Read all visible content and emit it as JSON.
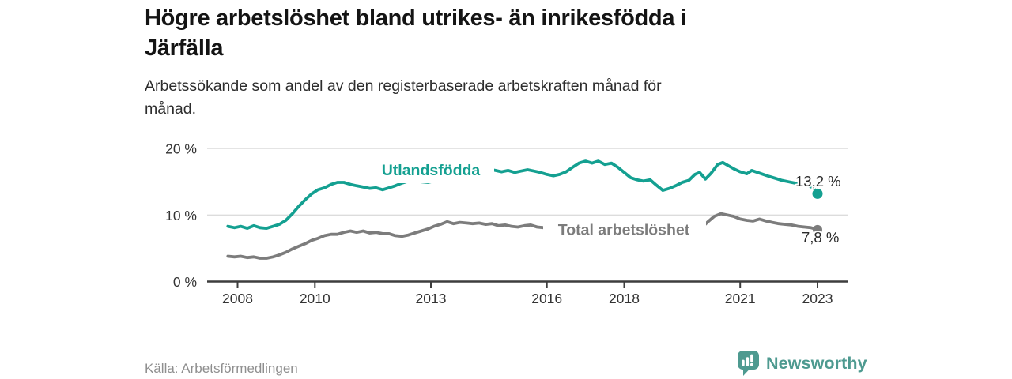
{
  "header": {
    "title_line1": "Högre arbetslöshet bland utrikes- än inrikesfödda i",
    "title_line2": "Järfälla",
    "subtitle_line1": "Arbetssökande som andel av den registerbaserade arbetskraften månad för",
    "subtitle_line2": "månad."
  },
  "footer": {
    "source": "Källa: Arbetsförmedlingen",
    "logo_text": "Newsworthy"
  },
  "chart_data": {
    "type": "line",
    "title": "Högre arbetslöshet bland utrikes- än inrikesfödda i Järfälla",
    "subtitle": "Arbetssökande som andel av den registerbaserade arbetskraften månad för månad.",
    "source": "Källa: Arbetsförmedlingen",
    "unit": "%",
    "grid": "horizontal-only",
    "legend_position": "inline-on-line",
    "xlim": [
      2007.2,
      2023.8
    ],
    "ylim": [
      0,
      21
    ],
    "x_ticks": [
      2008,
      2010,
      2013,
      2016,
      2018,
      2021,
      2023
    ],
    "y_ticks": [
      {
        "value": 0,
        "label": "0 %"
      },
      {
        "value": 10,
        "label": "10 %"
      },
      {
        "value": 20,
        "label": "20 %"
      }
    ],
    "colors": {
      "grid": "#dcdcdc",
      "axis": "#3d3d3d",
      "teal": "#14a091",
      "gray": "#7c7c7c"
    },
    "series": [
      {
        "name": "Utlandsfödda",
        "color": "#14a091",
        "end_label": "13,2 %",
        "end_value": 13.2,
        "points": [
          [
            2007.75,
            8.3
          ],
          [
            2007.92,
            8.1
          ],
          [
            2008.08,
            8.3
          ],
          [
            2008.25,
            8.0
          ],
          [
            2008.42,
            8.4
          ],
          [
            2008.58,
            8.1
          ],
          [
            2008.75,
            8.0
          ],
          [
            2008.92,
            8.3
          ],
          [
            2009.08,
            8.6
          ],
          [
            2009.25,
            9.2
          ],
          [
            2009.42,
            10.2
          ],
          [
            2009.58,
            11.3
          ],
          [
            2009.75,
            12.3
          ],
          [
            2009.92,
            13.2
          ],
          [
            2010.08,
            13.8
          ],
          [
            2010.25,
            14.1
          ],
          [
            2010.42,
            14.6
          ],
          [
            2010.58,
            14.9
          ],
          [
            2010.75,
            14.9
          ],
          [
            2010.92,
            14.6
          ],
          [
            2011.08,
            14.4
          ],
          [
            2011.25,
            14.2
          ],
          [
            2011.42,
            14.0
          ],
          [
            2011.58,
            14.1
          ],
          [
            2011.75,
            13.8
          ],
          [
            2011.92,
            14.1
          ],
          [
            2012.08,
            14.4
          ],
          [
            2012.25,
            14.8
          ],
          [
            2012.42,
            15.1
          ],
          [
            2012.58,
            15.2
          ],
          [
            2012.75,
            15.0
          ],
          [
            2012.92,
            14.9
          ],
          [
            2013.08,
            15.1
          ],
          [
            2013.33,
            15.3
          ],
          [
            2013.58,
            15.6
          ],
          [
            2013.83,
            15.9
          ],
          [
            2014.08,
            16.2
          ],
          [
            2014.33,
            16.5
          ],
          [
            2014.5,
            16.9
          ],
          [
            2014.67,
            16.7
          ],
          [
            2014.83,
            16.5
          ],
          [
            2015.0,
            16.7
          ],
          [
            2015.17,
            16.4
          ],
          [
            2015.33,
            16.6
          ],
          [
            2015.5,
            16.8
          ],
          [
            2015.67,
            16.6
          ],
          [
            2015.83,
            16.4
          ],
          [
            2016.0,
            16.1
          ],
          [
            2016.17,
            15.9
          ],
          [
            2016.33,
            16.1
          ],
          [
            2016.5,
            16.5
          ],
          [
            2016.67,
            17.2
          ],
          [
            2016.83,
            17.8
          ],
          [
            2017.0,
            18.1
          ],
          [
            2017.17,
            17.8
          ],
          [
            2017.33,
            18.1
          ],
          [
            2017.5,
            17.6
          ],
          [
            2017.67,
            17.8
          ],
          [
            2017.83,
            17.2
          ],
          [
            2018.0,
            16.4
          ],
          [
            2018.17,
            15.6
          ],
          [
            2018.33,
            15.3
          ],
          [
            2018.5,
            15.1
          ],
          [
            2018.67,
            15.3
          ],
          [
            2018.83,
            14.5
          ],
          [
            2019.0,
            13.7
          ],
          [
            2019.17,
            14.0
          ],
          [
            2019.33,
            14.4
          ],
          [
            2019.5,
            14.9
          ],
          [
            2019.67,
            15.2
          ],
          [
            2019.83,
            16.1
          ],
          [
            2019.95,
            16.4
          ],
          [
            2020.1,
            15.4
          ],
          [
            2020.25,
            16.3
          ],
          [
            2020.42,
            17.6
          ],
          [
            2020.55,
            17.9
          ],
          [
            2020.7,
            17.4
          ],
          [
            2020.85,
            16.9
          ],
          [
            2021.0,
            16.5
          ],
          [
            2021.17,
            16.2
          ],
          [
            2021.3,
            16.7
          ],
          [
            2021.45,
            16.4
          ],
          [
            2021.6,
            16.1
          ],
          [
            2021.75,
            15.8
          ],
          [
            2021.92,
            15.5
          ],
          [
            2022.08,
            15.2
          ],
          [
            2022.25,
            15.0
          ],
          [
            2022.42,
            14.8
          ],
          [
            2022.58,
            14.6
          ],
          [
            2022.75,
            14.4
          ],
          [
            2022.9,
            14.1
          ],
          [
            2023.0,
            13.2
          ]
        ]
      },
      {
        "name": "Total arbetslöshet",
        "color": "#7c7c7c",
        "end_label": "7,8 %",
        "end_value": 7.8,
        "points": [
          [
            2007.75,
            3.8
          ],
          [
            2007.92,
            3.7
          ],
          [
            2008.08,
            3.8
          ],
          [
            2008.25,
            3.6
          ],
          [
            2008.42,
            3.7
          ],
          [
            2008.58,
            3.5
          ],
          [
            2008.75,
            3.5
          ],
          [
            2008.92,
            3.7
          ],
          [
            2009.08,
            4.0
          ],
          [
            2009.25,
            4.4
          ],
          [
            2009.42,
            4.9
          ],
          [
            2009.58,
            5.3
          ],
          [
            2009.75,
            5.7
          ],
          [
            2009.92,
            6.2
          ],
          [
            2010.08,
            6.5
          ],
          [
            2010.25,
            6.9
          ],
          [
            2010.42,
            7.1
          ],
          [
            2010.58,
            7.1
          ],
          [
            2010.75,
            7.4
          ],
          [
            2010.92,
            7.6
          ],
          [
            2011.08,
            7.4
          ],
          [
            2011.25,
            7.6
          ],
          [
            2011.42,
            7.3
          ],
          [
            2011.58,
            7.4
          ],
          [
            2011.75,
            7.2
          ],
          [
            2011.92,
            7.2
          ],
          [
            2012.08,
            6.9
          ],
          [
            2012.25,
            6.8
          ],
          [
            2012.42,
            7.0
          ],
          [
            2012.58,
            7.3
          ],
          [
            2012.75,
            7.6
          ],
          [
            2012.92,
            7.9
          ],
          [
            2013.08,
            8.3
          ],
          [
            2013.25,
            8.6
          ],
          [
            2013.42,
            9.0
          ],
          [
            2013.58,
            8.7
          ],
          [
            2013.75,
            8.9
          ],
          [
            2013.92,
            8.8
          ],
          [
            2014.08,
            8.7
          ],
          [
            2014.25,
            8.8
          ],
          [
            2014.42,
            8.6
          ],
          [
            2014.58,
            8.7
          ],
          [
            2014.75,
            8.4
          ],
          [
            2014.92,
            8.5
          ],
          [
            2015.08,
            8.3
          ],
          [
            2015.25,
            8.2
          ],
          [
            2015.42,
            8.4
          ],
          [
            2015.58,
            8.5
          ],
          [
            2015.75,
            8.2
          ],
          [
            2015.92,
            8.1
          ],
          [
            2016.17,
            8.0
          ],
          [
            2016.5,
            7.9
          ],
          [
            2016.83,
            7.8
          ],
          [
            2017.17,
            7.7
          ],
          [
            2017.5,
            7.6
          ],
          [
            2017.83,
            7.5
          ],
          [
            2018.17,
            7.6
          ],
          [
            2018.5,
            7.6
          ],
          [
            2018.83,
            7.7
          ],
          [
            2019.17,
            7.8
          ],
          [
            2019.5,
            7.9
          ],
          [
            2019.83,
            8.0
          ],
          [
            2020.0,
            8.1
          ],
          [
            2020.17,
            9.0
          ],
          [
            2020.33,
            9.8
          ],
          [
            2020.5,
            10.2
          ],
          [
            2020.67,
            10.0
          ],
          [
            2020.83,
            9.8
          ],
          [
            2021.0,
            9.4
          ],
          [
            2021.17,
            9.2
          ],
          [
            2021.33,
            9.1
          ],
          [
            2021.5,
            9.4
          ],
          [
            2021.67,
            9.1
          ],
          [
            2021.83,
            8.9
          ],
          [
            2022.0,
            8.7
          ],
          [
            2022.17,
            8.6
          ],
          [
            2022.33,
            8.5
          ],
          [
            2022.5,
            8.3
          ],
          [
            2022.67,
            8.2
          ],
          [
            2022.83,
            8.1
          ],
          [
            2023.0,
            7.8
          ]
        ]
      }
    ]
  }
}
